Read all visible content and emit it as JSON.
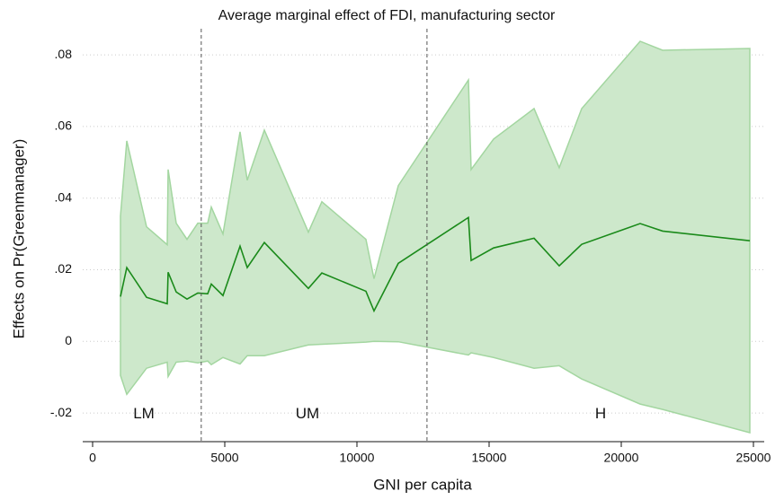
{
  "chart_data": {
    "type": "band-line",
    "title": "Average marginal effect of FDI, manufacturing sector",
    "x_label": "GNI per capita",
    "y_label": "Effects on Pr(Greenmanager)",
    "x": [
      1054,
      1293,
      2041,
      2823,
      2857,
      3163,
      3571,
      3980,
      4354,
      4490,
      4932,
      5578,
      5850,
      6497,
      8163,
      8673,
      10340,
      10646,
      11565,
      14218,
      14320,
      15170,
      16701,
      17653,
      18503,
      20714,
      21565,
      24864
    ],
    "values": [
      0.0125,
      0.0206,
      0.0123,
      0.0105,
      0.0193,
      0.0138,
      0.0118,
      0.0135,
      0.0133,
      0.016,
      0.0128,
      0.0266,
      0.0206,
      0.0276,
      0.0148,
      0.0191,
      0.014,
      0.0085,
      0.0218,
      0.0346,
      0.0226,
      0.0261,
      0.0288,
      0.0211,
      0.0271,
      0.0329,
      0.0308,
      0.0281
    ],
    "upper": [
      0.035,
      0.056,
      0.032,
      0.027,
      0.048,
      0.033,
      0.0285,
      0.033,
      0.033,
      0.0375,
      0.03,
      0.0585,
      0.045,
      0.059,
      0.0305,
      0.039,
      0.0285,
      0.0175,
      0.0435,
      0.073,
      0.048,
      0.0565,
      0.065,
      0.0485,
      0.065,
      0.0838,
      0.0813,
      0.0818
    ],
    "lower": [
      -0.0095,
      -0.0148,
      -0.0075,
      -0.0058,
      -0.0098,
      -0.0058,
      -0.0055,
      -0.006,
      -0.0055,
      -0.0065,
      -0.0045,
      -0.0063,
      -0.004,
      -0.004,
      -0.001,
      -0.0008,
      -0.0002,
      0,
      -0.0001,
      -0.0038,
      -0.0032,
      -0.0045,
      -0.0075,
      -0.0068,
      -0.0105,
      -0.0175,
      -0.019,
      -0.0255
    ],
    "color": "#1a8a1a",
    "band_color": "#cde8cb",
    "band_edge": "#a3d6a0",
    "thresholds": [
      4110,
      12650
    ],
    "annotations": [
      {
        "text": "LM",
        "x": 1940,
        "y": -0.0203
      },
      {
        "text": "UM",
        "x": 8130,
        "y": -0.0203
      },
      {
        "text": "H",
        "x": 19220,
        "y": -0.0203
      }
    ],
    "xlim": [
      0,
      25000
    ],
    "xticks": [
      0,
      5000,
      10000,
      15000,
      20000,
      25000
    ],
    "ylim": [
      -0.028,
      0.0853
    ],
    "yticks": [
      {
        "value": -0.02,
        "label": "-.02"
      },
      0,
      {
        "value": 0.02,
        "label": ".02"
      },
      {
        "value": 0.04,
        "label": ".04"
      },
      {
        "value": 0.06,
        "label": ".06"
      },
      {
        "value": 0.08,
        "label": ".08"
      }
    ],
    "grid": true
  }
}
